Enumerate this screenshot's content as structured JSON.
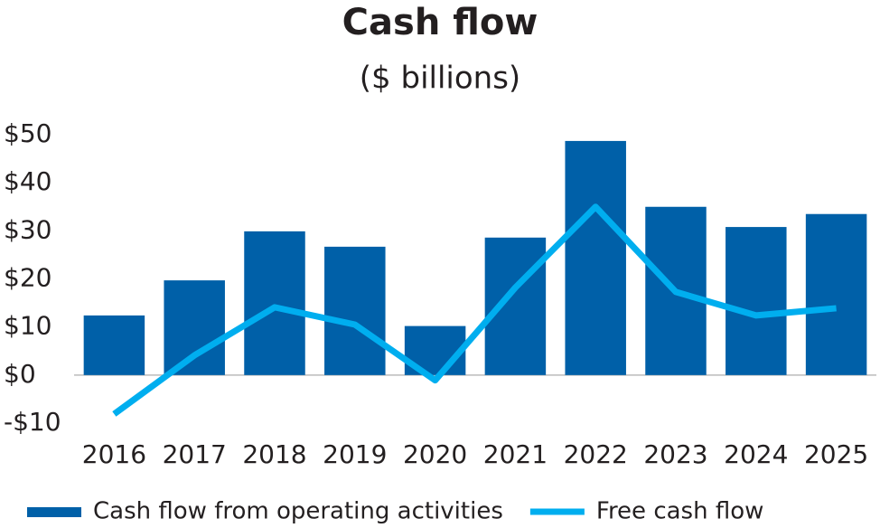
{
  "chart_data": {
    "type": "bar",
    "title": "Cash flow",
    "subtitle": "($ billions)",
    "categories": [
      "2016",
      "2017",
      "2018",
      "2019",
      "2020",
      "2021",
      "2022",
      "2023",
      "2024",
      "2025"
    ],
    "series": [
      {
        "name": "Cash flow from operating activities",
        "type": "bar",
        "color": "#0060a8",
        "values": [
          12.4,
          19.7,
          29.9,
          26.7,
          10.2,
          28.6,
          48.7,
          35.0,
          30.8,
          33.5
        ]
      },
      {
        "name": "Free cash flow",
        "type": "line",
        "color": "#00aeef",
        "values": [
          -8.1,
          4.1,
          14.1,
          10.5,
          -1.1,
          18.2,
          35.0,
          17.3,
          12.4,
          13.9
        ]
      }
    ],
    "ylim": [
      -10,
      50
    ],
    "yticks": [
      {
        "value": -10,
        "label": "-$10"
      },
      {
        "value": 0,
        "label": "$0"
      },
      {
        "value": 10,
        "label": "$10"
      },
      {
        "value": 20,
        "label": "$20"
      },
      {
        "value": 30,
        "label": "$30"
      },
      {
        "value": 40,
        "label": "$40"
      },
      {
        "value": 50,
        "label": "$50"
      }
    ],
    "grid": false
  }
}
